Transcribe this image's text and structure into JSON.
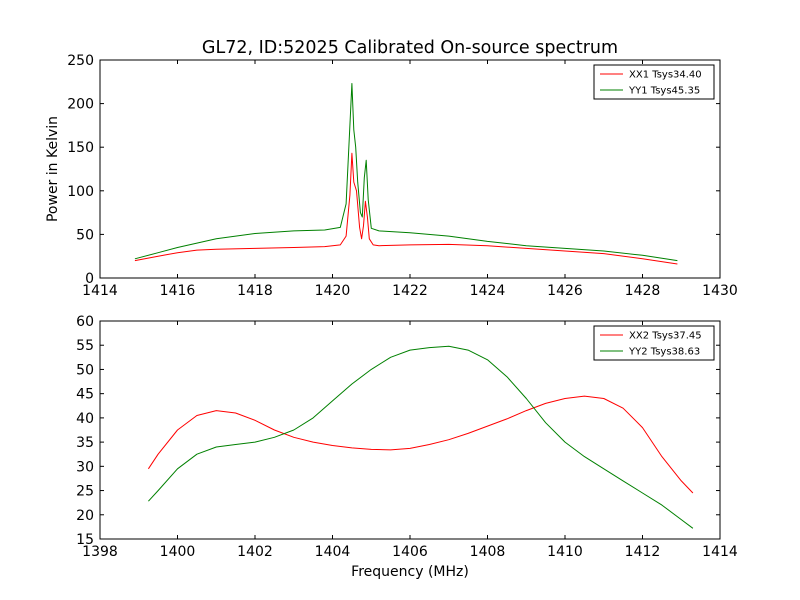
{
  "chart_data": [
    {
      "type": "line",
      "title": "GL72, ID:52025 Calibrated On-source spectrum",
      "xlabel": "",
      "ylabel": "Power in Kelvin",
      "xlim": [
        1414,
        1430
      ],
      "ylim": [
        0,
        250
      ],
      "xticks": [
        1414,
        1416,
        1418,
        1420,
        1422,
        1424,
        1426,
        1428,
        1430
      ],
      "yticks": [
        0,
        50,
        100,
        150,
        200,
        250
      ],
      "legend_position": "top-right",
      "series": [
        {
          "name": "XX1 Tsys34.40",
          "color": "#ff0000",
          "x": [
            1414.9,
            1415.5,
            1416.0,
            1416.5,
            1417.0,
            1418.0,
            1419.0,
            1419.8,
            1420.2,
            1420.35,
            1420.45,
            1420.5,
            1420.55,
            1420.62,
            1420.7,
            1420.75,
            1420.8,
            1420.85,
            1420.9,
            1420.95,
            1421.05,
            1421.2,
            1422.0,
            1423.0,
            1424.0,
            1425.0,
            1426.0,
            1427.0,
            1428.0,
            1428.9
          ],
          "y": [
            20,
            25,
            29,
            32,
            33,
            34,
            35,
            36,
            38,
            48,
            95,
            143,
            110,
            100,
            58,
            45,
            60,
            88,
            70,
            45,
            38,
            37,
            38,
            38.5,
            37,
            34,
            31,
            28,
            22,
            16
          ]
        },
        {
          "name": "YY1 Tsys45.35",
          "color": "#008000",
          "x": [
            1414.9,
            1415.5,
            1416.0,
            1416.5,
            1417.0,
            1418.0,
            1419.0,
            1419.8,
            1420.2,
            1420.35,
            1420.45,
            1420.5,
            1420.55,
            1420.6,
            1420.65,
            1420.72,
            1420.77,
            1420.82,
            1420.87,
            1420.92,
            1421.0,
            1421.2,
            1422.0,
            1423.0,
            1424.0,
            1425.0,
            1426.0,
            1427.0,
            1428.0,
            1428.9
          ],
          "y": [
            22,
            29,
            35,
            40,
            45,
            51,
            54,
            55,
            58,
            85,
            175,
            223,
            170,
            150,
            110,
            75,
            70,
            115,
            135,
            90,
            57,
            54,
            52,
            48,
            42,
            37,
            34,
            31,
            26,
            20
          ]
        }
      ]
    },
    {
      "type": "line",
      "title": "",
      "xlabel": "Frequency (MHz)",
      "ylabel": "",
      "xlim": [
        1398,
        1414
      ],
      "ylim": [
        15,
        60
      ],
      "xticks": [
        1398,
        1400,
        1402,
        1404,
        1406,
        1408,
        1410,
        1412,
        1414
      ],
      "yticks": [
        15,
        20,
        25,
        30,
        35,
        40,
        45,
        50,
        55,
        60
      ],
      "legend_position": "top-right",
      "series": [
        {
          "name": "XX2 Tsys37.45",
          "color": "#ff0000",
          "x": [
            1399.25,
            1399.5,
            1400.0,
            1400.5,
            1401.0,
            1401.5,
            1402.0,
            1402.5,
            1403.0,
            1403.5,
            1404.0,
            1404.5,
            1405.0,
            1405.5,
            1406.0,
            1406.5,
            1407.0,
            1407.5,
            1408.0,
            1408.5,
            1409.0,
            1409.5,
            1410.0,
            1410.5,
            1411.0,
            1411.5,
            1412.0,
            1412.5,
            1413.0,
            1413.3
          ],
          "y": [
            29.5,
            32.5,
            37.5,
            40.5,
            41.5,
            41,
            39.5,
            37.5,
            36,
            35,
            34.3,
            33.8,
            33.5,
            33.4,
            33.7,
            34.5,
            35.5,
            36.8,
            38.3,
            39.8,
            41.5,
            43,
            44,
            44.5,
            44,
            42,
            38,
            32,
            27,
            24.5
          ]
        },
        {
          "name": "YY2 Tsys38.63",
          "color": "#008000",
          "x": [
            1399.25,
            1399.5,
            1400.0,
            1400.5,
            1401.0,
            1401.5,
            1402.0,
            1402.5,
            1403.0,
            1403.5,
            1404.0,
            1404.5,
            1405.0,
            1405.5,
            1406.0,
            1406.5,
            1407.0,
            1407.5,
            1408.0,
            1408.5,
            1409.0,
            1409.5,
            1410.0,
            1410.5,
            1411.0,
            1411.5,
            1412.0,
            1412.5,
            1413.0,
            1413.3
          ],
          "y": [
            22.8,
            25,
            29.5,
            32.5,
            34,
            34.5,
            35,
            36,
            37.5,
            40,
            43.5,
            47,
            50,
            52.5,
            54,
            54.5,
            54.8,
            54,
            52,
            48.5,
            44,
            39,
            35,
            32,
            29.5,
            27,
            24.5,
            22,
            19,
            17.2
          ]
        }
      ]
    }
  ]
}
